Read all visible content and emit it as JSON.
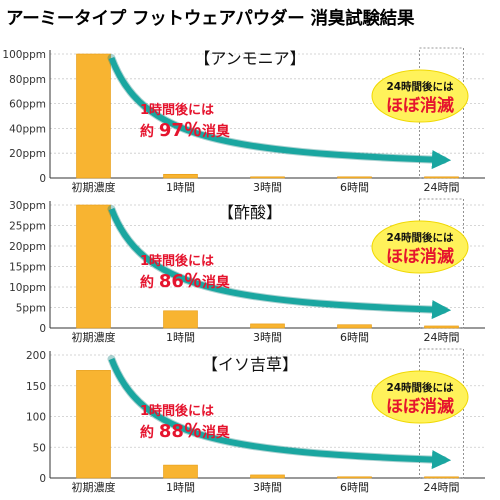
{
  "page_title": "アーミータイプ フットウェアパウダー 消臭試験結果",
  "colors": {
    "bar": "#f8b431",
    "bar_stroke": "#e59a12",
    "arrow": "#1aa6a0",
    "arrow_dark": "#0d7f7b",
    "callout_red": "#e5142e",
    "badge_fill": "#fff25a",
    "axis": "#333333",
    "grid": "#c9c9c9"
  },
  "chart_data": [
    {
      "type": "bar",
      "title": "【アンモニア】",
      "categories": [
        "初期濃度",
        "1時間",
        "3時間",
        "6時間",
        "24時間"
      ],
      "values": [
        100,
        3,
        0.5,
        0.5,
        0.2
      ],
      "ylim": [
        0,
        100
      ],
      "yticks": [
        {
          "value": 0,
          "label": "0"
        },
        {
          "value": 20,
          "label": "20ppm"
        },
        {
          "value": 40,
          "label": "40ppm"
        },
        {
          "value": 60,
          "label": "60ppm"
        },
        {
          "value": 80,
          "label": "80ppm"
        },
        {
          "value": 100,
          "label": "100ppm"
        }
      ],
      "grid": true,
      "annotation": {
        "line1": "1時間後には",
        "prefix": "約 ",
        "value": "97％",
        "suffix": "消臭"
      },
      "badge": {
        "line1": "24時間後には",
        "line2": "ほぼ消滅"
      }
    },
    {
      "type": "bar",
      "title": "【酢酸】",
      "categories": [
        "初期濃度",
        "1時間",
        "3時間",
        "6時間",
        "24時間"
      ],
      "values": [
        30,
        4.2,
        1,
        0.8,
        0.5
      ],
      "ylim": [
        0,
        30
      ],
      "yticks": [
        {
          "value": 0,
          "label": "0"
        },
        {
          "value": 5,
          "label": "5ppm"
        },
        {
          "value": 10,
          "label": "10ppm"
        },
        {
          "value": 15,
          "label": "15ppm"
        },
        {
          "value": 20,
          "label": "20ppm"
        },
        {
          "value": 25,
          "label": "25ppm"
        },
        {
          "value": 30,
          "label": "30ppm"
        }
      ],
      "grid": true,
      "annotation": {
        "line1": "1時間後には",
        "prefix": "約 ",
        "value": "86％",
        "suffix": "消臭"
      },
      "badge": {
        "line1": "24時間後には",
        "line2": "ほぼ消滅"
      }
    },
    {
      "type": "bar",
      "title": "【イソ吉草】",
      "categories": [
        "初期濃度",
        "1時間",
        "3時間",
        "6時間",
        "24時間"
      ],
      "values": [
        175,
        21,
        5,
        2,
        1
      ],
      "ylim": [
        0,
        200
      ],
      "yticks": [
        {
          "value": 0,
          "label": "0"
        },
        {
          "value": 50,
          "label": "50"
        },
        {
          "value": 100,
          "label": "100"
        },
        {
          "value": 150,
          "label": "150"
        },
        {
          "value": 200,
          "label": "200"
        }
      ],
      "grid": true,
      "annotation": {
        "line1": "1時間後には",
        "prefix": "約 ",
        "value": "88％",
        "suffix": "消臭"
      },
      "badge": {
        "line1": "24時間後には",
        "line2": "ほぼ消滅"
      }
    }
  ]
}
